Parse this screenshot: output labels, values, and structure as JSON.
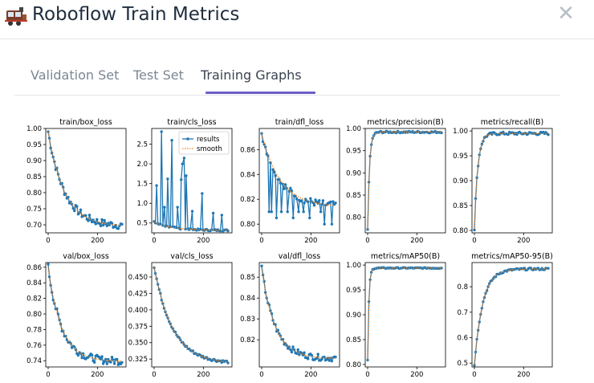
{
  "header": {
    "title": "Roboflow Train Metrics",
    "icon": "train-icon",
    "close": "✕"
  },
  "tabs": [
    {
      "label": "Validation Set",
      "active": false
    },
    {
      "label": "Test Set",
      "active": false
    },
    {
      "label": "Training Graphs",
      "active": true
    }
  ],
  "colors": {
    "results": "#1f77b4",
    "smooth": "#ff7f0e",
    "accent": "#6b5fc7"
  },
  "chart_data": [
    {
      "type": "line",
      "title": "train/box_loss",
      "x": [
        0,
        300
      ],
      "xticks": [
        0,
        200
      ],
      "ylim": [
        0.675,
        1.0
      ],
      "yticks": [
        "0.70",
        "0.75",
        "0.80",
        "0.85",
        "0.90",
        "0.95",
        "1.00"
      ],
      "ytick_values": [
        0.7,
        0.75,
        0.8,
        0.85,
        0.9,
        0.95,
        1.0
      ],
      "series": [
        {
          "start": 0.99,
          "end": 0.695,
          "rate": 4.5,
          "noise": 0.012
        }
      ]
    },
    {
      "type": "line",
      "title": "train/cls_loss",
      "x": [
        0,
        300
      ],
      "xticks": [
        0,
        200
      ],
      "ylim": [
        0.25,
        2.9
      ],
      "yticks": [
        "0.5",
        "1.0",
        "1.5",
        "2.0",
        "2.5"
      ],
      "ytick_values": [
        0.5,
        1.0,
        1.5,
        2.0,
        2.5
      ],
      "legend": [
        "results",
        "smooth"
      ],
      "legend_position": "top-right",
      "series": [
        {
          "start": 0.52,
          "end": 0.31,
          "rate": 4.0,
          "noise": 0.02,
          "spikes": [
            [
              10,
              1.45
            ],
            [
              30,
              2.82
            ],
            [
              42,
              0.9
            ],
            [
              55,
              1.62
            ],
            [
              72,
              2.6
            ],
            [
              95,
              0.9
            ],
            [
              110,
              1.6
            ],
            [
              115,
              2.0
            ],
            [
              122,
              2.15
            ],
            [
              130,
              1.7
            ],
            [
              155,
              0.8
            ],
            [
              195,
              1.25
            ],
            [
              240,
              0.75
            ],
            [
              275,
              0.7
            ]
          ]
        }
      ]
    },
    {
      "type": "line",
      "title": "train/dfl_loss",
      "x": [
        0,
        300
      ],
      "xticks": [
        0,
        200
      ],
      "ylim": [
        0.793,
        0.877
      ],
      "yticks": [
        "0.80",
        "0.82",
        "0.84",
        "0.86"
      ],
      "ytick_values": [
        0.8,
        0.82,
        0.84,
        0.86
      ],
      "series": [
        {
          "start": 0.873,
          "end": 0.814,
          "rate": 4.0,
          "noise": 0.003,
          "dips": [
            [
              30,
              0.81
            ],
            [
              40,
              0.81
            ],
            [
              60,
              0.805
            ],
            [
              80,
              0.81
            ],
            [
              105,
              0.81
            ],
            [
              128,
              0.805
            ],
            [
              150,
              0.81
            ],
            [
              170,
              0.81
            ],
            [
              195,
              0.805
            ],
            [
              240,
              0.81
            ],
            [
              255,
              0.8
            ],
            [
              285,
              0.8
            ]
          ]
        }
      ]
    },
    {
      "type": "line",
      "title": "metrics/precision(B)",
      "x": [
        0,
        300
      ],
      "xticks": [
        0,
        200
      ],
      "ylim": [
        0.765,
        1.0
      ],
      "yticks": [
        "0.80",
        "0.85",
        "0.90",
        "0.95",
        "1.00"
      ],
      "ytick_values": [
        0.8,
        0.85,
        0.9,
        0.95,
        1.0
      ],
      "series": [
        {
          "start": 0.773,
          "end": 0.992,
          "rate": 40,
          "noise": 0.002
        }
      ]
    },
    {
      "type": "line",
      "title": "metrics/recall(B)",
      "x": [
        0,
        300
      ],
      "xticks": [
        0,
        200
      ],
      "ylim": [
        0.795,
        1.005
      ],
      "yticks": [
        "0.80",
        "0.85",
        "0.90",
        "0.95",
        "1.00"
      ],
      "ytick_values": [
        0.8,
        0.85,
        0.9,
        0.95,
        1.0
      ],
      "series": [
        {
          "start": 0.803,
          "end": 0.995,
          "rate": 22,
          "noise": 0.003
        }
      ]
    },
    {
      "type": "line",
      "title": "val/box_loss",
      "x": [
        0,
        300
      ],
      "xticks": [
        0,
        200
      ],
      "ylim": [
        0.732,
        0.866
      ],
      "yticks": [
        "0.74",
        "0.76",
        "0.78",
        "0.80",
        "0.82",
        "0.84",
        "0.86"
      ],
      "ytick_values": [
        0.74,
        0.76,
        0.78,
        0.8,
        0.82,
        0.84,
        0.86
      ],
      "series": [
        {
          "start": 0.86,
          "end": 0.739,
          "rate": 5.5,
          "noise": 0.005
        }
      ]
    },
    {
      "type": "line",
      "title": "val/cls_loss",
      "x": [
        0,
        300
      ],
      "xticks": [
        0,
        200
      ],
      "ylim": [
        0.313,
        0.472
      ],
      "yticks": [
        "0.325",
        "0.350",
        "0.375",
        "0.400",
        "0.425",
        "0.450"
      ],
      "ytick_values": [
        0.325,
        0.35,
        0.375,
        0.4,
        0.425,
        0.45
      ],
      "series": [
        {
          "start": 0.466,
          "end": 0.318,
          "rate": 4.0,
          "noise": 0.002
        }
      ]
    },
    {
      "type": "line",
      "title": "val/dfl_loss",
      "x": [
        0,
        300
      ],
      "xticks": [
        0,
        200
      ],
      "ylim": [
        0.807,
        0.857
      ],
      "yticks": [
        "0.82",
        "0.83",
        "0.84",
        "0.85"
      ],
      "ytick_values": [
        0.82,
        0.83,
        0.84,
        0.85
      ],
      "series": [
        {
          "start": 0.854,
          "end": 0.811,
          "rate": 5.5,
          "noise": 0.0015
        }
      ]
    },
    {
      "type": "line",
      "title": "metrics/mAP50(B)",
      "x": [
        0,
        300
      ],
      "xticks": [
        0,
        200
      ],
      "ylim": [
        0.795,
        1.005
      ],
      "yticks": [
        "0.80",
        "0.85",
        "0.90",
        "0.95",
        "1.00"
      ],
      "ytick_values": [
        0.8,
        0.85,
        0.9,
        0.95,
        1.0
      ],
      "series": [
        {
          "start": 0.808,
          "end": 0.994,
          "rate": 60,
          "noise": 0.001
        }
      ]
    },
    {
      "type": "line",
      "title": "metrics/mAP50-95(B)",
      "x": [
        0,
        300
      ],
      "xticks": [
        0,
        200
      ],
      "ylim": [
        0.485,
        0.895
      ],
      "yticks": [
        "0.5",
        "0.6",
        "0.7",
        "0.8"
      ],
      "ytick_values": [
        0.5,
        0.6,
        0.7,
        0.8
      ],
      "series": [
        {
          "start": 0.493,
          "end": 0.87,
          "rate": 9,
          "noise": 0.004
        }
      ]
    }
  ]
}
